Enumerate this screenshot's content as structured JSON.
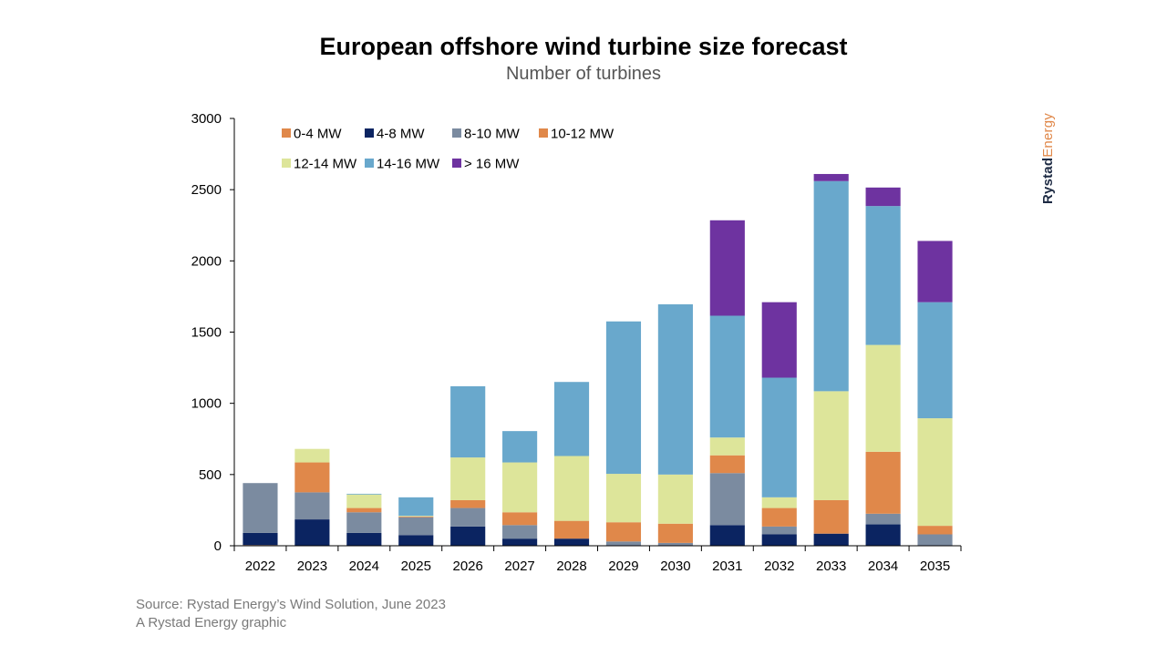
{
  "chart_data": {
    "type": "bar",
    "stacked": true,
    "title": "European offshore wind turbine size forecast",
    "subtitle": "Number of turbines",
    "xlabel": "",
    "ylabel": "",
    "ylim": [
      0,
      3000
    ],
    "yticks": [
      0,
      500,
      1000,
      1500,
      2000,
      2500,
      3000
    ],
    "ytick_labels": [
      "0",
      "500",
      "1000",
      "1500",
      "2000",
      "2500",
      "3000"
    ],
    "grid": false,
    "legend_position": "top-left",
    "categories": [
      "2022",
      "2023",
      "2024",
      "2025",
      "2026",
      "2027",
      "2028",
      "2029",
      "2030",
      "2031",
      "2032",
      "2033",
      "2034",
      "2035"
    ],
    "series": [
      {
        "name": "0-4 MW",
        "color": "#e0884a",
        "values": [
          5,
          0,
          0,
          0,
          0,
          0,
          0,
          0,
          0,
          0,
          0,
          0,
          0,
          0
        ]
      },
      {
        "name": "4-8 MW",
        "color": "#0b2461",
        "values": [
          85,
          185,
          90,
          75,
          135,
          50,
          50,
          5,
          5,
          145,
          80,
          85,
          150,
          5
        ]
      },
      {
        "name": "8-10 MW",
        "color": "#7b8ba0",
        "values": [
          350,
          190,
          145,
          125,
          130,
          95,
          0,
          25,
          15,
          365,
          55,
          0,
          75,
          75
        ]
      },
      {
        "name": "10-12 MW",
        "color": "#e0884a",
        "values": [
          0,
          210,
          30,
          5,
          55,
          90,
          125,
          135,
          135,
          125,
          130,
          235,
          435,
          60
        ]
      },
      {
        "name": "12-14 MW",
        "color": "#dde59a",
        "values": [
          0,
          95,
          95,
          5,
          300,
          350,
          455,
          340,
          345,
          125,
          75,
          765,
          750,
          755
        ]
      },
      {
        "name": "14-16 MW",
        "color": "#69a8cc",
        "values": [
          0,
          0,
          5,
          130,
          500,
          220,
          520,
          1070,
          1195,
          855,
          840,
          1475,
          975,
          815
        ]
      },
      {
        "name": "> 16 MW",
        "color": "#6e33a0",
        "values": [
          0,
          0,
          0,
          0,
          0,
          0,
          0,
          0,
          0,
          670,
          530,
          50,
          130,
          430
        ]
      }
    ]
  },
  "source": {
    "line1": "Source: Rystad Energy’s Wind Solution, June 2023",
    "line2": "A Rystad Energy graphic"
  },
  "logo": {
    "part1": "Rystad",
    "part2": "Energy",
    "color1": "#1e2b44",
    "color2": "#e0884a"
  }
}
